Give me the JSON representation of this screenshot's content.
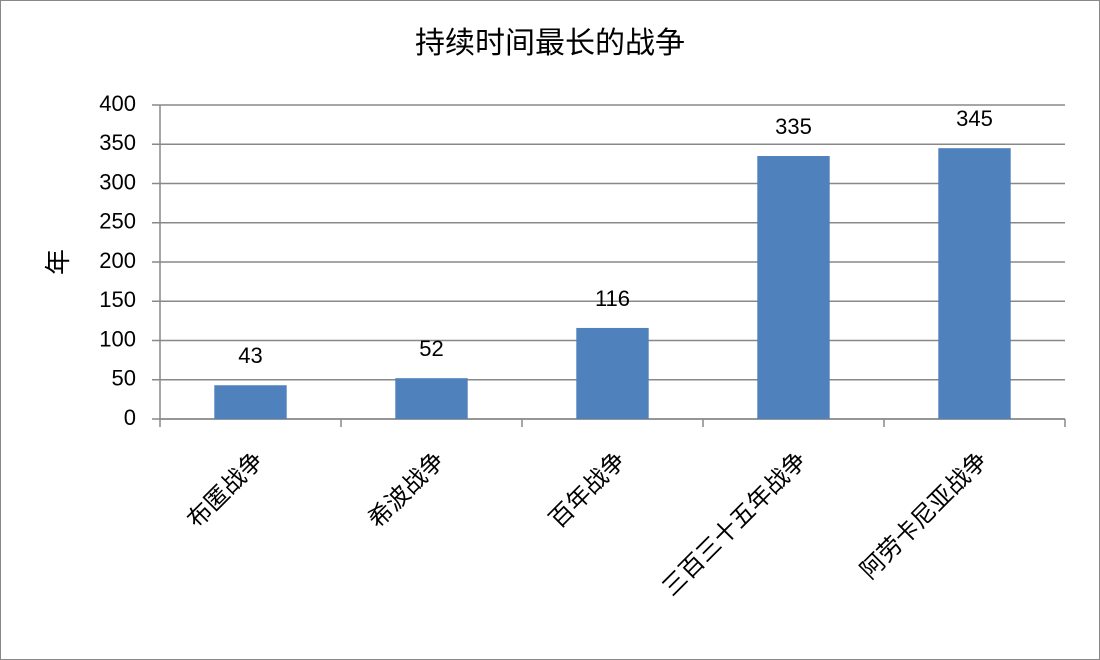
{
  "chart_data": {
    "type": "bar",
    "title": "持续时间最长的战争",
    "y_label": "年",
    "categories": [
      "布匿战争",
      "希波战争",
      "百年战争",
      "三百三十五年战争",
      "阿劳卡尼亚战争"
    ],
    "values": [
      43,
      52,
      116,
      335,
      345
    ],
    "color": "#4f81bd",
    "ylim": [
      0,
      400
    ],
    "yticks": [
      0,
      50,
      100,
      150,
      200,
      250,
      300,
      350,
      400
    ],
    "grid": true
  }
}
